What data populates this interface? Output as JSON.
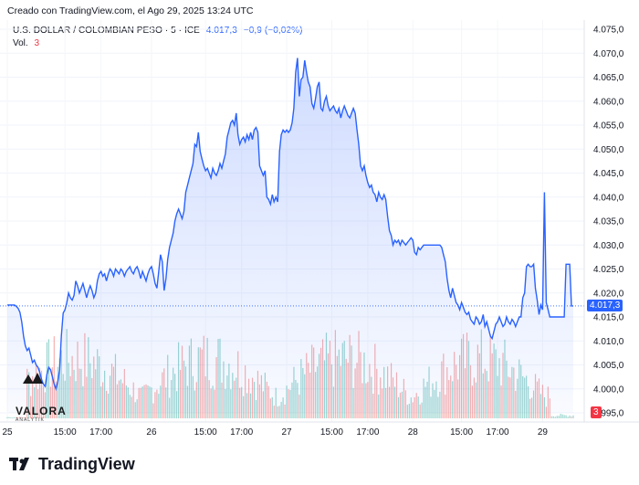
{
  "header": {
    "text": "Creado con TradingView.com, el Ago 29, 2025 13:24 UTC"
  },
  "legend": {
    "symbol": "U.S. DOLLAR / COLOMBIAN PESO · 5 · ICE",
    "price": "4.017,3",
    "change": "−0,9 (−0,02%)",
    "vol_label": "Vol.",
    "vol_value": "3"
  },
  "price_tag": {
    "label": "4.017,3",
    "color": "#2962ff"
  },
  "vol_tag": {
    "label": "3",
    "color": "#f23645"
  },
  "watermark": {
    "name": "VALORA",
    "sub": "ANALYTIK"
  },
  "footer": {
    "brand": "TradingView"
  },
  "chart_data": {
    "type": "area",
    "ylim": [
      3995.0,
      4075.0
    ],
    "y_tick_labels": [
      "4.075,0",
      "4.070,0",
      "4.065,0",
      "4.060,0",
      "4.055,0",
      "4.050,0",
      "4.045,0",
      "4.040,0",
      "4.035,0",
      "4.030,0",
      "4.025,0",
      "4.020,0",
      "4.015,0",
      "4.010,0",
      "4.005,0",
      "4.000,0",
      "3.995,0"
    ],
    "y_ticks": [
      4075,
      4070,
      4065,
      4060,
      4055,
      4050,
      4045,
      4040,
      4035,
      4030,
      4025,
      4020,
      4015,
      4010,
      4005,
      4000,
      3995
    ],
    "x_tick_labels": [
      "25",
      "15:00",
      "17:00",
      "26",
      "15:00",
      "17:00",
      "27",
      "15:00",
      "17:00",
      "28",
      "15:00",
      "17:00",
      "29"
    ],
    "x_tick_index": [
      0,
      32,
      52,
      80,
      110,
      130,
      155,
      180,
      200,
      225,
      252,
      272,
      297
    ],
    "last_price": 4017.3,
    "series": [
      {
        "values": [
          4017.5,
          4017.5,
          4017.5,
          4017.5,
          4017.5,
          4017.2,
          4016.8,
          4016,
          4014,
          4011,
          4009,
          4008,
          4008.5,
          4007,
          4005.5,
          4006,
          4005,
          4004.5,
          4003.5,
          4002,
          4001,
          4000.5,
          4003,
          4004.5,
          4004,
          4002.5,
          4001,
          4000,
          4001.5,
          4004,
          4011,
          4015.8,
          4016.5,
          4018,
          4020,
          4019,
          4018.5,
          4019.5,
          4022.5,
          4021.5,
          4020,
          4021,
          4022,
          4020.5,
          4019,
          4020.5,
          4021.5,
          4020.5,
          4019,
          4020,
          4022.5,
          4024,
          4024.5,
          4023.5,
          4024,
          4022.5,
          4024,
          4025,
          4024.5,
          4023.5,
          4025,
          4024.5,
          4024,
          4025,
          4024.5,
          4023.5,
          4024.5,
          4025,
          4025.5,
          4024.5,
          4024,
          4025,
          4025.5,
          4024.5,
          4023,
          4024.5,
          4023.5,
          4022.5,
          4024,
          4025,
          4025.5,
          4024,
          4022,
          4021,
          4024.5,
          4028,
          4026.5,
          4020.5,
          4023,
          4027,
          4029.5,
          4031,
          4032.5,
          4035,
          4036.5,
          4037.5,
          4036.5,
          4035.5,
          4037,
          4041,
          4042.5,
          4044,
          4045.5,
          4047,
          4051,
          4050.5,
          4053.5,
          4049.5,
          4048,
          4046.5,
          4045.5,
          4046,
          4045,
          4044,
          4046,
          4045,
          4044.5,
          4045.5,
          4047,
          4046,
          4047.5,
          4049,
          4052.5,
          4054,
          4055.5,
          4056,
          4055,
          4057.5,
          4053,
          4051,
          4052,
          4052.5,
          4051.5,
          4053,
          4052,
          4053.5,
          4052,
          4054,
          4054.5,
          4053.5,
          4046.5,
          4045.5,
          4044.5,
          4045.5,
          4040,
          4039.5,
          4038.5,
          4040.5,
          4039,
          4040,
          4039,
          4049.5,
          4053,
          4054,
          4053.5,
          4054,
          4053.5,
          4054,
          4055.5,
          4058.5,
          4066,
          4069,
          4061,
          4064.5,
          4065,
          4068.5,
          4066,
          4064,
          4063,
          4059.5,
          4058.5,
          4060.5,
          4063,
          4064,
          4058.5,
          4058,
          4060,
          4061,
          4059,
          4058,
          4058.5,
          4059,
          4058,
          4057.5,
          4058.5,
          4056.5,
          4058,
          4059,
          4058,
          4057,
          4056.5,
          4057.5,
          4058.5,
          4057.5,
          4054,
          4051,
          4046.5,
          4045.5,
          4046.5,
          4044.5,
          4043,
          4042,
          4042.5,
          4041,
          4040.5,
          4039,
          4041,
          4040,
          4039.5,
          4040.5,
          4039.5,
          4036,
          4033,
          4032,
          4030,
          4031,
          4030.5,
          4031,
          4030,
          4031,
          4030.5,
          4030,
          4030.5,
          4031,
          4031.5,
          4031,
          4028.5,
          4028,
          4029.5,
          4029,
          4029.5,
          4030,
          4030,
          4030,
          4030,
          4030,
          4030,
          4030,
          4030,
          4030,
          4030,
          4029.5,
          4028,
          4026.5,
          4023,
          4020.5,
          4019,
          4021,
          4019.5,
          4018,
          4017.5,
          4016.5,
          4018,
          4017,
          4016,
          4015.5,
          4016,
          4014.5,
          4014,
          4013.5,
          4015,
          4014.5,
          4013.5,
          4014,
          4015.5,
          4013,
          4014,
          4012.5,
          4011,
          4010.5,
          4012,
          4013.5,
          4014,
          4015,
          4014,
          4013,
          4013.5,
          4015,
          4014,
          4013.5,
          4014.5,
          4014,
          4013,
          4014,
          4015,
          4015,
          4019,
          4020,
          4025.5,
          4026,
          4025.5,
          4025.5,
          4026,
          4021,
          4018.5,
          4015.5,
          4017.5,
          4016.5,
          4041,
          4018,
          4016.5,
          4015,
          4015,
          4015,
          4015,
          4015,
          4015,
          4015,
          4015,
          4015,
          4026,
          4026,
          4026,
          4017.3,
          4017.3
        ]
      }
    ]
  }
}
